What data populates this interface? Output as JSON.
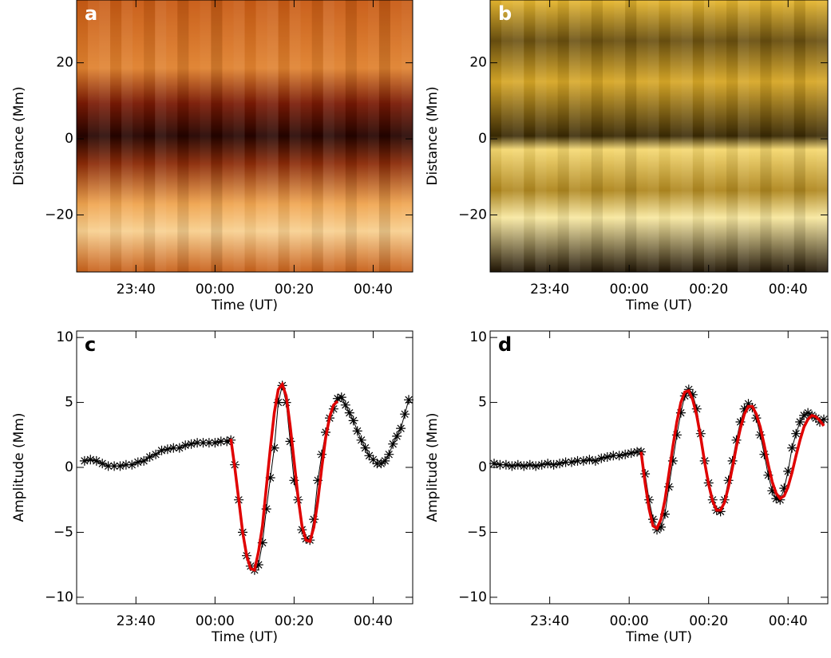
{
  "chart_data": [
    {
      "type": "image",
      "label": "a",
      "xlabel": "Time (UT)",
      "ylabel": "Distance (Mm)",
      "palette": "orange",
      "xlim": [
        -35,
        50
      ],
      "xticks": [
        {
          "value": -20,
          "label": "23:40"
        },
        {
          "value": 0,
          "label": "00:00"
        },
        {
          "value": 20,
          "label": "00:20"
        },
        {
          "value": 40,
          "label": "00:40"
        }
      ],
      "ylim": [
        -35,
        36.5
      ],
      "yticks": [
        {
          "value": -20,
          "label": "−20"
        },
        0,
        20
      ]
    },
    {
      "type": "image",
      "label": "b",
      "xlabel": "Time (UT)",
      "ylabel": "Distance (Mm)",
      "palette": "gold",
      "xlim": [
        -35,
        50
      ],
      "xticks": [
        {
          "value": -20,
          "label": "23:40"
        },
        {
          "value": 0,
          "label": "00:00"
        },
        {
          "value": 20,
          "label": "00:20"
        },
        {
          "value": 40,
          "label": "00:40"
        }
      ],
      "ylim": [
        -35,
        36.5
      ],
      "yticks": [
        {
          "value": -20,
          "label": "−20"
        },
        0,
        20
      ]
    },
    {
      "type": "line",
      "label": "c",
      "xlabel": "Time (UT)",
      "ylabel": "Amplitude (Mm)",
      "xlim": [
        -35,
        50
      ],
      "xticks": [
        {
          "value": -20,
          "label": "23:40"
        },
        {
          "value": 0,
          "label": "00:00"
        },
        {
          "value": 20,
          "label": "00:20"
        },
        {
          "value": 40,
          "label": "00:40"
        }
      ],
      "ylim": [
        -10.5,
        10.5
      ],
      "yticks": [
        {
          "value": -10,
          "label": "−10"
        },
        {
          "value": -5,
          "label": "−5"
        },
        0,
        5,
        10
      ],
      "series": [
        {
          "color": "#000000",
          "marker": "asterisk",
          "x": [
            -33,
            -31.5,
            -30,
            -28.5,
            -27,
            -25.5,
            -24,
            -22.5,
            -21,
            -19.5,
            -18,
            -16.5,
            -15,
            -13.5,
            -12,
            -10.5,
            -9,
            -7.5,
            -6,
            -4.5,
            -3,
            -1.5,
            0,
            1.5,
            3,
            4,
            5,
            6,
            7,
            8,
            9,
            10,
            11,
            12,
            13,
            14,
            15,
            16,
            17,
            18,
            19,
            20,
            21,
            22,
            23,
            24,
            25,
            26,
            27,
            28,
            29,
            30,
            31,
            32,
            33,
            34,
            35,
            36,
            37,
            38,
            39,
            40,
            41,
            42,
            43,
            44,
            45,
            46,
            47,
            48,
            49
          ],
          "values": [
            0.5,
            0.6,
            0.5,
            0.3,
            0.1,
            0.1,
            0.1,
            0.2,
            0.2,
            0.4,
            0.5,
            0.8,
            1.0,
            1.3,
            1.4,
            1.5,
            1.5,
            1.7,
            1.8,
            1.9,
            1.9,
            1.9,
            1.9,
            2.0,
            2.0,
            2.1,
            0.2,
            -2.5,
            -5,
            -6.8,
            -7.6,
            -7.9,
            -7.5,
            -5.8,
            -3.2,
            -0.8,
            1.5,
            5,
            6.3,
            5,
            2,
            -1,
            -2.5,
            -4.8,
            -5.5,
            -5.6,
            -4,
            -1,
            1,
            2.7,
            3.8,
            4.5,
            5.3,
            5.4,
            4.8,
            4.2,
            3.6,
            2.8,
            2.1,
            1.5,
            0.9,
            0.6,
            0.3,
            0.3,
            0.5,
            1.0,
            1.8,
            2.4,
            3.0,
            4.1,
            5.2
          ]
        },
        {
          "color": "#e00000",
          "x": [
            4,
            5,
            6,
            7,
            8,
            9,
            10,
            11,
            12,
            13,
            14,
            15,
            16,
            17,
            18,
            19,
            20,
            21,
            22,
            23,
            24,
            25,
            26,
            27,
            28,
            29,
            30,
            31
          ],
          "values": [
            2.2,
            0,
            -2.5,
            -5,
            -6.8,
            -7.8,
            -7.9,
            -6.5,
            -4.5,
            -1.5,
            1.5,
            4.2,
            6,
            6.4,
            5.5,
            3.2,
            0.5,
            -2.3,
            -4.5,
            -5.6,
            -5.7,
            -4.6,
            -2.6,
            0,
            2.3,
            3.9,
            4.8,
            5.1
          ]
        }
      ]
    },
    {
      "type": "line",
      "label": "d",
      "xlabel": "Time (UT)",
      "ylabel": "Amplitude (Mm)",
      "xlim": [
        -35,
        50
      ],
      "xticks": [
        {
          "value": -20,
          "label": "23:40"
        },
        {
          "value": 0,
          "label": "00:00"
        },
        {
          "value": 20,
          "label": "00:20"
        },
        {
          "value": 40,
          "label": "00:40"
        }
      ],
      "ylim": [
        -10.5,
        10.5
      ],
      "yticks": [
        {
          "value": -10,
          "label": "−10"
        },
        {
          "value": -5,
          "label": "−5"
        },
        0,
        5,
        10
      ],
      "series": [
        {
          "color": "#000000",
          "marker": "asterisk",
          "x": [
            -34,
            -32.5,
            -31,
            -29.5,
            -28,
            -26.5,
            -25,
            -23.5,
            -22,
            -20.5,
            -19,
            -17.5,
            -16,
            -14.5,
            -13,
            -11.5,
            -10,
            -8.5,
            -7,
            -5.5,
            -4,
            -2.5,
            -1,
            0.5,
            2,
            3,
            4,
            5,
            6,
            7,
            8,
            9,
            10,
            11,
            12,
            13,
            14,
            15,
            16,
            17,
            18,
            19,
            20,
            21,
            22,
            23,
            24,
            25,
            26,
            27,
            28,
            29,
            30,
            31,
            32,
            33,
            34,
            35,
            36,
            37,
            38,
            39,
            40,
            41,
            42,
            43,
            44,
            45,
            46,
            47,
            48,
            49
          ],
          "values": [
            0.3,
            0.2,
            0.2,
            0.1,
            0.2,
            0.1,
            0.2,
            0.1,
            0.2,
            0.3,
            0.2,
            0.3,
            0.4,
            0.4,
            0.5,
            0.5,
            0.6,
            0.5,
            0.7,
            0.8,
            0.9,
            0.9,
            1.0,
            1.1,
            1.2,
            1.2,
            -0.5,
            -2.5,
            -4,
            -4.8,
            -4.6,
            -3.6,
            -1.5,
            0.5,
            2.5,
            4.2,
            5.5,
            6,
            5.6,
            4.5,
            2.6,
            0.5,
            -1.2,
            -2.5,
            -3.3,
            -3.4,
            -2.5,
            -1,
            0.5,
            2.1,
            3.5,
            4.5,
            4.9,
            4.6,
            3.8,
            2.5,
            1,
            -0.6,
            -1.8,
            -2.4,
            -2.5,
            -1.6,
            -0.3,
            1.5,
            2.6,
            3.5,
            4,
            4.2,
            4.0,
            3.8,
            3.5,
            3.7
          ]
        },
        {
          "color": "#e00000",
          "x": [
            3,
            4,
            5,
            6,
            7,
            8,
            9,
            10,
            11,
            12,
            13,
            14,
            15,
            16,
            17,
            18,
            19,
            20,
            21,
            22,
            23,
            24,
            25,
            26,
            27,
            28,
            29,
            30,
            31,
            32,
            33,
            34,
            35,
            36,
            37,
            38,
            39,
            40,
            41,
            42,
            43,
            44,
            45,
            46,
            47,
            48,
            49
          ],
          "values": [
            1.2,
            -1.2,
            -3.2,
            -4.5,
            -4.7,
            -4,
            -2.5,
            -0.5,
            1.6,
            3.5,
            5,
            5.8,
            5.9,
            5.2,
            4,
            2.3,
            0.4,
            -1.3,
            -2.6,
            -3.3,
            -3.3,
            -2.7,
            -1.5,
            0,
            1.6,
            3,
            4.1,
            4.7,
            4.7,
            4.1,
            3.1,
            1.7,
            0.2,
            -1.1,
            -2,
            -2.4,
            -2.2,
            -1.5,
            -0.4,
            0.9,
            2.1,
            3.1,
            3.7,
            4,
            3.9,
            3.6,
            3.2
          ]
        }
      ]
    }
  ]
}
